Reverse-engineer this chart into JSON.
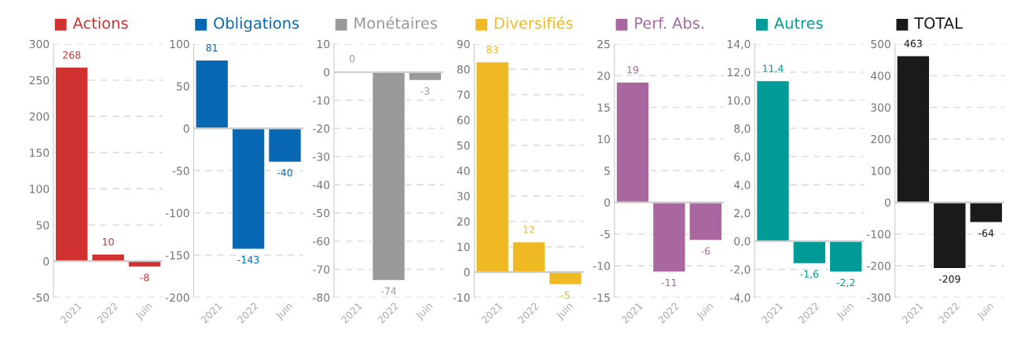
{
  "chart_data": [
    {
      "type": "bar",
      "title": "■ Actions",
      "categories": [
        "2021",
        "2022",
        "Juin"
      ],
      "series": [
        {
          "color": "#d03232",
          "values": [
            268,
            10,
            -8
          ]
        }
      ],
      "value_labels": [
        "268",
        "10",
        "-8"
      ],
      "ylim": [
        -50,
        300
      ],
      "yticks": [
        -50,
        0,
        50,
        100,
        150,
        200,
        250,
        300
      ],
      "grid": "y"
    },
    {
      "type": "bar",
      "title": "■ Obligations",
      "categories": [
        "2021",
        "2022",
        "Juin"
      ],
      "series": [
        {
          "color": "#0868b4",
          "values": [
            81,
            -143,
            -40
          ]
        }
      ],
      "value_labels": [
        "81",
        "-143",
        "-40"
      ],
      "ylim": [
        -200,
        100
      ],
      "yticks": [
        -200,
        -150,
        -100,
        -50,
        0,
        50,
        100
      ],
      "grid": "y"
    },
    {
      "type": "bar",
      "title": "■ Monétaires",
      "categories": [
        "2021",
        "2022",
        "Juin"
      ],
      "series": [
        {
          "color": "#999999",
          "values": [
            0.4,
            -74,
            -3
          ]
        }
      ],
      "value_labels": [
        "0",
        "-74",
        "-3"
      ],
      "ylim": [
        -80,
        10
      ],
      "yticks": [
        -80,
        -70,
        -60,
        -50,
        -40,
        -30,
        -20,
        -10,
        0,
        10
      ],
      "grid": "y"
    },
    {
      "type": "bar",
      "title": "■ Diversifiés",
      "categories": [
        "2021",
        "2022",
        "Juin"
      ],
      "series": [
        {
          "color": "#f0b823",
          "values": [
            83,
            12,
            -5
          ]
        }
      ],
      "value_labels": [
        "83",
        "12",
        "-5"
      ],
      "ylim": [
        -10,
        90
      ],
      "yticks": [
        -10,
        0,
        10,
        20,
        30,
        40,
        50,
        60,
        70,
        80,
        90
      ],
      "grid": "y"
    },
    {
      "type": "bar",
      "title": "■ Perf. Abs.",
      "categories": [
        "2021",
        "2022",
        "Juin"
      ],
      "series": [
        {
          "color": "#a8679f",
          "values": [
            19,
            -11,
            -6
          ]
        }
      ],
      "value_labels": [
        "19",
        "-11",
        "-6"
      ],
      "ylim": [
        -15,
        25
      ],
      "yticks": [
        -15,
        -10,
        -5,
        0,
        5,
        10,
        15,
        20,
        25
      ],
      "grid": "y"
    },
    {
      "type": "bar",
      "title": "■ Autres",
      "categories": [
        "2021",
        "2022",
        "Juin"
      ],
      "series": [
        {
          "color": "#009b96",
          "values": [
            11.4,
            -1.6,
            -2.2
          ]
        }
      ],
      "value_labels": [
        "11,4",
        "-1,6",
        "-2,2"
      ],
      "ylim": [
        -4,
        14
      ],
      "yticks": [
        {
          "value": -4,
          "label": "-4,0"
        },
        {
          "value": -2,
          "label": "-2,0"
        },
        {
          "value": 0,
          "label": "0,0"
        },
        {
          "value": 2,
          "label": "2,0"
        },
        {
          "value": 4,
          "label": "4,0"
        },
        {
          "value": 6,
          "label": "6,0"
        },
        {
          "value": 8,
          "label": "8,0"
        },
        {
          "value": 10,
          "label": "10,0"
        },
        {
          "value": 12,
          "label": "12,0"
        },
        {
          "value": 14,
          "label": "14,0"
        }
      ],
      "grid": "y"
    },
    {
      "type": "bar",
      "title": "■ TOTAL",
      "categories": [
        "2021",
        "2022",
        "Juin"
      ],
      "series": [
        {
          "color": "#1a1a1a",
          "values": [
            463,
            -209,
            -64
          ]
        }
      ],
      "value_labels": [
        "463",
        "-209",
        "-64"
      ],
      "ylim": [
        -300,
        500
      ],
      "yticks": [
        -300,
        -200,
        -100,
        0,
        100,
        200,
        300,
        400,
        500
      ],
      "grid": "y"
    }
  ]
}
